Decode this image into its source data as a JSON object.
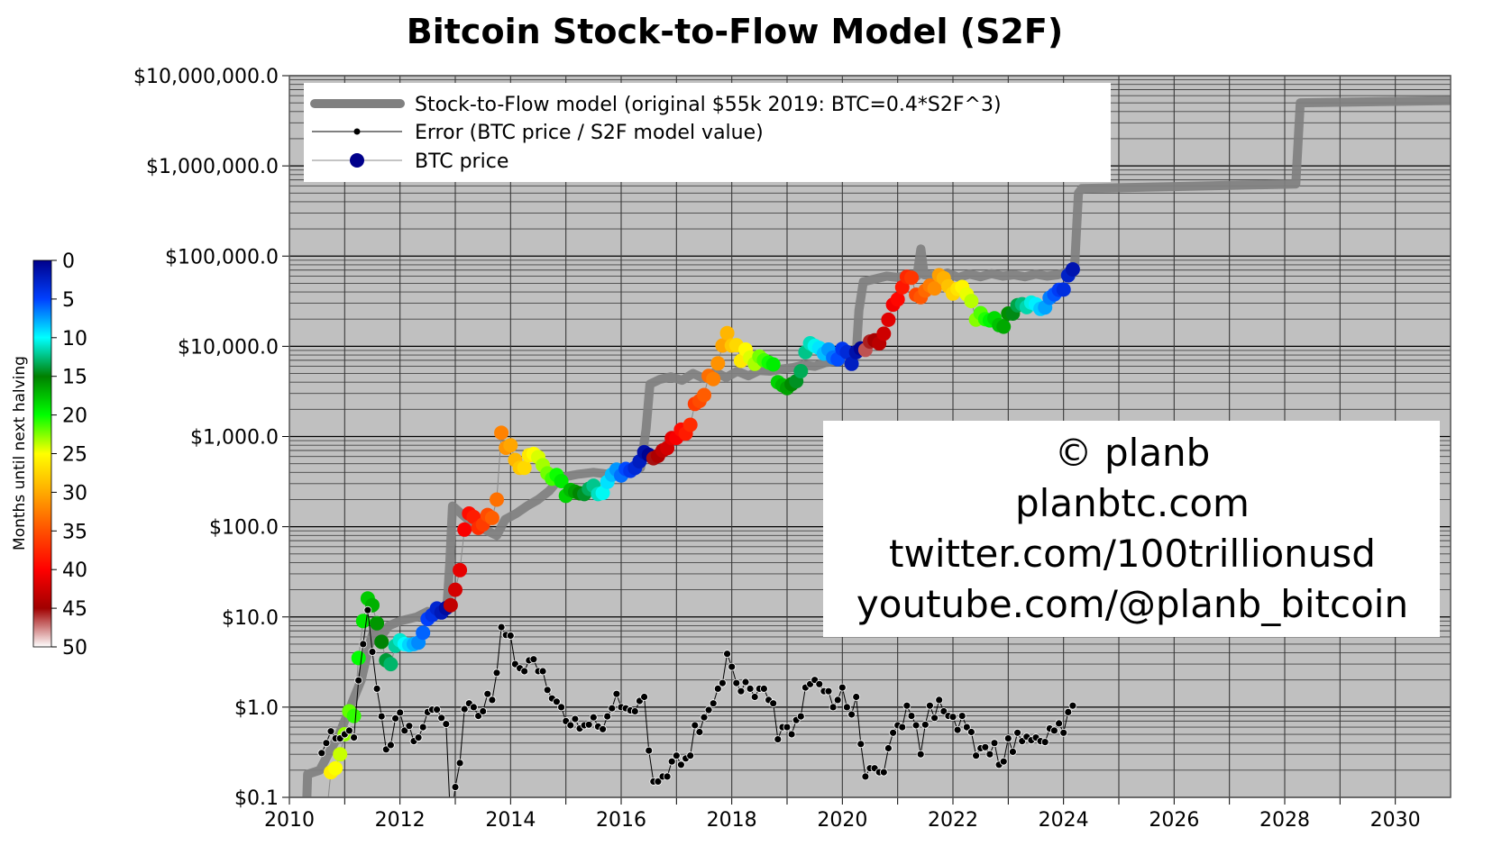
{
  "chart_data": {
    "type": "line",
    "title": "Bitcoin Stock-to-Flow Model (S2F)",
    "xlabel": "",
    "ylabel": "",
    "xlim": [
      2010,
      2031
    ],
    "ylim": [
      0.1,
      10000000
    ],
    "y_scale": "log",
    "grid": true,
    "legend_placement": "top-left",
    "x_ticks": [
      2010,
      2012,
      2014,
      2016,
      2018,
      2020,
      2022,
      2024,
      2026,
      2028,
      2030
    ],
    "y_ticks": [
      {
        "value": 10000000,
        "label": "$10,000,000.0"
      },
      {
        "value": 1000000,
        "label": "$1,000,000.0"
      },
      {
        "value": 100000,
        "label": "$100,000.0"
      },
      {
        "value": 10000,
        "label": "$10,000.0"
      },
      {
        "value": 1000,
        "label": "$1,000.0"
      },
      {
        "value": 100,
        "label": "$100.0"
      },
      {
        "value": 10,
        "label": "$10.0"
      },
      {
        "value": 1,
        "label": "$1.0"
      },
      {
        "value": 0.1,
        "label": "$0.1"
      }
    ],
    "legend": [
      {
        "label": "Stock-to-Flow model (original $55k 2019:  BTC=0.4*S2F^3)",
        "color": "#808080"
      },
      {
        "label": "Error (BTC price / S2F model value)",
        "color": "#000000"
      },
      {
        "label": "BTC price",
        "color": "#00008b"
      }
    ],
    "s2f_model": [
      [
        2010.3,
        0.05
      ],
      [
        2010.33,
        0.18
      ],
      [
        2010.55,
        0.2
      ],
      [
        2010.7,
        0.3
      ],
      [
        2010.9,
        0.5
      ],
      [
        2011.1,
        1.0
      ],
      [
        2011.3,
        2.0
      ],
      [
        2011.45,
        5
      ],
      [
        2011.55,
        8
      ],
      [
        2011.65,
        6
      ],
      [
        2011.8,
        8
      ],
      [
        2012.0,
        9
      ],
      [
        2012.3,
        10
      ],
      [
        2012.5,
        11.5
      ],
      [
        2012.7,
        10.5
      ],
      [
        2012.85,
        13
      ],
      [
        2012.9,
        40
      ],
      [
        2012.95,
        170
      ],
      [
        2013.05,
        150
      ],
      [
        2013.3,
        110
      ],
      [
        2013.5,
        95
      ],
      [
        2013.75,
        80
      ],
      [
        2013.9,
        120
      ],
      [
        2014.1,
        140
      ],
      [
        2014.3,
        170
      ],
      [
        2014.5,
        200
      ],
      [
        2014.7,
        250
      ],
      [
        2014.9,
        350
      ],
      [
        2015.2,
        380
      ],
      [
        2015.5,
        400
      ],
      [
        2015.8,
        380
      ],
      [
        2016.1,
        400
      ],
      [
        2016.35,
        450
      ],
      [
        2016.45,
        1200
      ],
      [
        2016.52,
        3800
      ],
      [
        2016.7,
        4300
      ],
      [
        2016.9,
        4600
      ],
      [
        2017.1,
        4200
      ],
      [
        2017.3,
        5000
      ],
      [
        2017.5,
        4400
      ],
      [
        2017.7,
        5200
      ],
      [
        2017.9,
        4500
      ],
      [
        2018.1,
        5300
      ],
      [
        2018.3,
        4700
      ],
      [
        2018.5,
        5400
      ],
      [
        2018.7,
        5300
      ],
      [
        2018.9,
        5600
      ],
      [
        2019.1,
        5800
      ],
      [
        2019.3,
        6200
      ],
      [
        2019.5,
        6000
      ],
      [
        2019.7,
        6600
      ],
      [
        2019.9,
        6800
      ],
      [
        2020.1,
        7200
      ],
      [
        2020.25,
        8000
      ],
      [
        2020.3,
        25000
      ],
      [
        2020.38,
        52000
      ],
      [
        2020.6,
        56000
      ],
      [
        2020.8,
        60000
      ],
      [
        2021.0,
        58000
      ],
      [
        2021.2,
        62000
      ],
      [
        2021.35,
        60000
      ],
      [
        2021.42,
        120000
      ],
      [
        2021.48,
        62000
      ],
      [
        2021.7,
        60000
      ],
      [
        2021.9,
        65000
      ],
      [
        2022.1,
        58000
      ],
      [
        2022.3,
        63000
      ],
      [
        2022.5,
        59000
      ],
      [
        2022.7,
        64000
      ],
      [
        2022.9,
        60000
      ],
      [
        2023.1,
        62000
      ],
      [
        2023.3,
        59000
      ],
      [
        2023.5,
        63000
      ],
      [
        2023.7,
        60000
      ],
      [
        2023.9,
        62000
      ],
      [
        2024.1,
        68000
      ],
      [
        2024.2,
        75000
      ],
      [
        2024.27,
        500000
      ],
      [
        2024.33,
        560000
      ],
      [
        2026.0,
        590000
      ],
      [
        2028.2,
        630000
      ],
      [
        2028.28,
        5000000
      ],
      [
        2031,
        5300000
      ]
    ],
    "monthly_date_price_error": [
      [
        "2010-08",
        0.06,
        0.31
      ],
      [
        "2010-09",
        0.06,
        0.4
      ],
      [
        "2010-10",
        0.19,
        0.54
      ],
      [
        "2010-11",
        0.21,
        0.45
      ],
      [
        "2010-12",
        0.3,
        0.45
      ],
      [
        "2011-01",
        0.5,
        0.5
      ],
      [
        "2011-02",
        0.9,
        0.55
      ],
      [
        "2011-03",
        0.8,
        0.46
      ],
      [
        "2011-04",
        3.5,
        1.98
      ],
      [
        "2011-05",
        9,
        5
      ],
      [
        "2011-06",
        16,
        11.9
      ],
      [
        "2011-07",
        13.5,
        4.1
      ],
      [
        "2011-08",
        8.5,
        1.6
      ],
      [
        "2011-09",
        5.3,
        0.79
      ],
      [
        "2011-10",
        3.3,
        0.34
      ],
      [
        "2011-11",
        3,
        0.38
      ],
      [
        "2011-12",
        4.8,
        0.75
      ],
      [
        "2012-01",
        5.5,
        0.87
      ],
      [
        "2012-02",
        5,
        0.55
      ],
      [
        "2012-03",
        4.9,
        0.62
      ],
      [
        "2012-04",
        5,
        0.42
      ],
      [
        "2012-05",
        5.2,
        0.46
      ],
      [
        "2012-06",
        6.7,
        0.6
      ],
      [
        "2012-07",
        9.5,
        0.88
      ],
      [
        "2012-08",
        10.5,
        0.94
      ],
      [
        "2012-09",
        12.4,
        0.94
      ],
      [
        "2012-10",
        11.2,
        0.76
      ],
      [
        "2012-11",
        12.5,
        0.65
      ],
      [
        "2012-12",
        13.5,
        0.05
      ],
      [
        "2013-01",
        20,
        0.13
      ],
      [
        "2013-02",
        33,
        0.24
      ],
      [
        "2013-03",
        93,
        0.95
      ],
      [
        "2013-04",
        140,
        1.1
      ],
      [
        "2013-05",
        128,
        1.0
      ],
      [
        "2013-06",
        97,
        0.8
      ],
      [
        "2013-07",
        106,
        0.9
      ],
      [
        "2013-08",
        135,
        1.4
      ],
      [
        "2013-09",
        125,
        1.2
      ],
      [
        "2013-10",
        200,
        2.4
      ],
      [
        "2013-11",
        1100,
        7.7
      ],
      [
        "2013-12",
        750,
        6.3
      ],
      [
        "2014-01",
        800,
        6.2
      ],
      [
        "2014-02",
        550,
        3.0
      ],
      [
        "2014-03",
        450,
        2.7
      ],
      [
        "2014-04",
        450,
        2.5
      ],
      [
        "2014-05",
        620,
        3.3
      ],
      [
        "2014-06",
        640,
        3.4
      ],
      [
        "2014-07",
        590,
        2.5
      ],
      [
        "2014-08",
        480,
        2.5
      ],
      [
        "2014-09",
        390,
        1.55
      ],
      [
        "2014-10",
        340,
        1.25
      ],
      [
        "2014-11",
        375,
        1.15
      ],
      [
        "2014-12",
        320,
        1.0
      ],
      [
        "2015-01",
        220,
        0.7
      ],
      [
        "2015-02",
        255,
        0.63
      ],
      [
        "2015-03",
        245,
        0.74
      ],
      [
        "2015-04",
        235,
        0.58
      ],
      [
        "2015-05",
        230,
        0.63
      ],
      [
        "2015-06",
        263,
        0.64
      ],
      [
        "2015-07",
        285,
        0.77
      ],
      [
        "2015-08",
        230,
        0.61
      ],
      [
        "2015-09",
        237,
        0.57
      ],
      [
        "2015-10",
        314,
        0.79
      ],
      [
        "2015-11",
        378,
        0.97
      ],
      [
        "2015-12",
        430,
        1.4
      ],
      [
        "2016-01",
        370,
        1.0
      ],
      [
        "2016-02",
        437,
        0.97
      ],
      [
        "2016-03",
        416,
        0.92
      ],
      [
        "2016-04",
        448,
        0.9
      ],
      [
        "2016-05",
        530,
        1.17
      ],
      [
        "2016-06",
        670,
        1.3
      ],
      [
        "2016-07",
        625,
        0.33
      ],
      [
        "2016-08",
        575,
        0.15
      ],
      [
        "2016-09",
        610,
        0.15
      ],
      [
        "2016-10",
        700,
        0.17
      ],
      [
        "2016-11",
        745,
        0.17
      ],
      [
        "2016-12",
        960,
        0.25
      ],
      [
        "2017-01",
        965,
        0.29
      ],
      [
        "2017-02",
        1190,
        0.23
      ],
      [
        "2017-03",
        1080,
        0.27
      ],
      [
        "2017-04",
        1350,
        0.29
      ],
      [
        "2017-05",
        2300,
        0.63
      ],
      [
        "2017-06",
        2480,
        0.53
      ],
      [
        "2017-07",
        2880,
        0.77
      ],
      [
        "2017-08",
        4700,
        0.93
      ],
      [
        "2017-09",
        4340,
        1.1
      ],
      [
        "2017-10",
        6470,
        1.6
      ],
      [
        "2017-11",
        10200,
        1.85
      ],
      [
        "2017-12",
        14000,
        3.9
      ],
      [
        "2018-01",
        10200,
        2.8
      ],
      [
        "2018-02",
        10300,
        1.85
      ],
      [
        "2018-03",
        6900,
        1.5
      ],
      [
        "2018-04",
        9200,
        1.9
      ],
      [
        "2018-05",
        7500,
        1.6
      ],
      [
        "2018-06",
        6400,
        1.3
      ],
      [
        "2018-07",
        7700,
        1.6
      ],
      [
        "2018-08",
        7000,
        1.6
      ],
      [
        "2018-09",
        6600,
        1.2
      ],
      [
        "2018-10",
        6300,
        1.1
      ],
      [
        "2018-11",
        4000,
        0.44
      ],
      [
        "2018-12",
        3700,
        0.6
      ],
      [
        "2019-01",
        3450,
        0.6
      ],
      [
        "2019-02",
        3800,
        0.5
      ],
      [
        "2019-03",
        4100,
        0.72
      ],
      [
        "2019-04",
        5300,
        0.79
      ],
      [
        "2019-05",
        8600,
        1.65
      ],
      [
        "2019-06",
        10800,
        1.8
      ],
      [
        "2019-07",
        10100,
        2.0
      ],
      [
        "2019-08",
        9600,
        1.8
      ],
      [
        "2019-09",
        8300,
        1.5
      ],
      [
        "2019-10",
        9200,
        1.5
      ],
      [
        "2019-11",
        7500,
        1.0
      ],
      [
        "2019-12",
        7200,
        1.2
      ],
      [
        "2020-01",
        9350,
        1.65
      ],
      [
        "2020-02",
        8600,
        1.0
      ],
      [
        "2020-03",
        6400,
        0.83
      ],
      [
        "2020-04",
        8600,
        1.3
      ],
      [
        "2020-05",
        9450,
        0.39
      ],
      [
        "2020-06",
        9140,
        0.17
      ],
      [
        "2020-07",
        11300,
        0.21
      ],
      [
        "2020-08",
        11650,
        0.21
      ],
      [
        "2020-09",
        10780,
        0.19
      ],
      [
        "2020-10",
        13800,
        0.19
      ],
      [
        "2020-11",
        19700,
        0.35
      ],
      [
        "2020-12",
        29000,
        0.52
      ],
      [
        "2021-01",
        33100,
        0.63
      ],
      [
        "2021-02",
        45100,
        0.6
      ],
      [
        "2021-03",
        58800,
        1.04
      ],
      [
        "2021-04",
        57700,
        0.8
      ],
      [
        "2021-05",
        37300,
        0.63
      ],
      [
        "2021-06",
        35000,
        0.3
      ],
      [
        "2021-07",
        41500,
        0.64
      ],
      [
        "2021-08",
        47100,
        1.04
      ],
      [
        "2021-09",
        43800,
        0.76
      ],
      [
        "2021-10",
        61300,
        1.2
      ],
      [
        "2021-11",
        57000,
        0.9
      ],
      [
        "2021-12",
        46300,
        0.8
      ],
      [
        "2022-01",
        38500,
        0.78
      ],
      [
        "2022-02",
        43200,
        0.56
      ],
      [
        "2022-03",
        45500,
        0.8
      ],
      [
        "2022-04",
        37700,
        0.6
      ],
      [
        "2022-05",
        31800,
        0.53
      ],
      [
        "2022-06",
        19800,
        0.29
      ],
      [
        "2022-07",
        23300,
        0.35
      ],
      [
        "2022-08",
        20000,
        0.36
      ],
      [
        "2022-09",
        19400,
        0.3
      ],
      [
        "2022-10",
        20500,
        0.4
      ],
      [
        "2022-11",
        17200,
        0.23
      ],
      [
        "2022-12",
        16500,
        0.25
      ],
      [
        "2023-01",
        23100,
        0.45
      ],
      [
        "2023-02",
        23100,
        0.32
      ],
      [
        "2023-03",
        28500,
        0.52
      ],
      [
        "2023-04",
        29300,
        0.42
      ],
      [
        "2023-05",
        27200,
        0.47
      ],
      [
        "2023-06",
        30500,
        0.43
      ],
      [
        "2023-07",
        29200,
        0.46
      ],
      [
        "2023-08",
        26000,
        0.42
      ],
      [
        "2023-09",
        27000,
        0.41
      ],
      [
        "2023-10",
        34500,
        0.58
      ],
      [
        "2023-11",
        37700,
        0.55
      ],
      [
        "2023-12",
        42300,
        0.66
      ],
      [
        "2024-01",
        42600,
        0.52
      ],
      [
        "2024-02",
        61200,
        0.88
      ],
      [
        "2024-03",
        71300,
        1.04
      ]
    ],
    "colorbar": {
      "label": "Months until next halving",
      "range": [
        0,
        50
      ],
      "ticks": [
        0,
        5,
        10,
        15,
        20,
        25,
        30,
        35,
        40,
        45,
        50
      ],
      "colors": [
        "#00008b",
        "#0040ff",
        "#00ffff",
        "#008000",
        "#00ff00",
        "#ffff00",
        "#ffaa00",
        "#ff5000",
        "#ff0000",
        "#a00000",
        "#ffffff"
      ]
    },
    "colors": {
      "plot_background": "#c0c0c0",
      "model": "#808080",
      "error": "#000000"
    }
  },
  "watermark": {
    "lines": [
      "© planb",
      "planbtc.com",
      "twitter.com/100trillionusd",
      "youtube.com/@planb_bitcoin"
    ]
  }
}
